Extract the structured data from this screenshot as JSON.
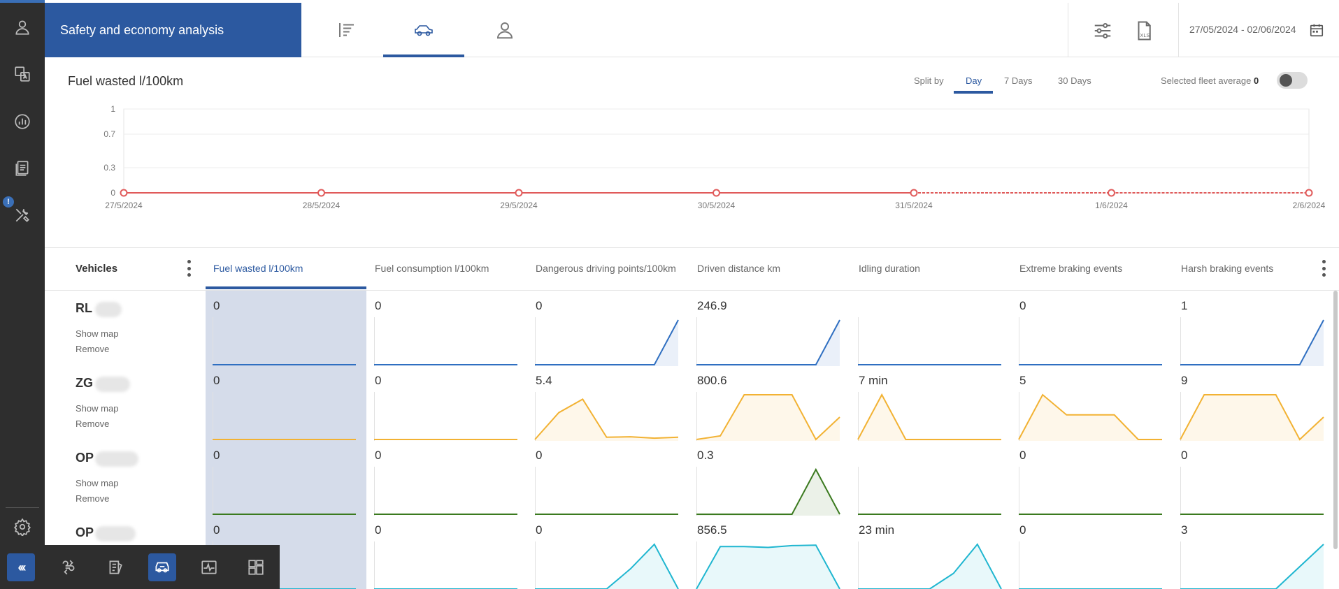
{
  "header": {
    "title": "Safety and economy analysis",
    "date_range": "27/05/2024 - 02/06/2024",
    "tabs": [
      {
        "name": "tab-summary",
        "icon": "align-left-icon"
      },
      {
        "name": "tab-vehicles",
        "icon": "car-icon",
        "active": true
      },
      {
        "name": "tab-drivers",
        "icon": "person-icon"
      }
    ],
    "export_label": "XLS"
  },
  "chart": {
    "title": "Fuel wasted l/100km",
    "split_label": "Split by",
    "split_options": [
      "Day",
      "7 Days",
      "30 Days"
    ],
    "split_selected": "Day",
    "fleet_avg_label": "Selected fleet average",
    "fleet_avg_value": "0",
    "fleet_avg_toggle_on": false
  },
  "chart_data": {
    "type": "line",
    "title": "Fuel wasted l/100km",
    "categories": [
      "27/5/2024",
      "28/5/2024",
      "29/5/2024",
      "30/5/2024",
      "31/5/2024",
      "1/6/2024",
      "2/6/2024"
    ],
    "yticks": [
      "0",
      "0.3",
      "0.7",
      "1"
    ],
    "ylim": [
      0,
      1
    ],
    "series": [
      {
        "values": [
          0,
          0,
          0,
          0,
          0,
          0,
          0
        ],
        "color": "#e05a5a"
      }
    ],
    "grid": true
  },
  "table": {
    "vehicles_header": "Vehicles",
    "columns": [
      "Fuel wasted l/100km",
      "Fuel consumption l/100km",
      "Dangerous driving points/100km",
      "Driven distance km",
      "Idling duration",
      "Extreme braking events",
      "Harsh braking events"
    ],
    "active_column": 0,
    "show_map_label": "Show map",
    "remove_label": "Remove",
    "rows": [
      {
        "prefix": "RL",
        "color": "#2f6fc1",
        "values": [
          "0",
          "0",
          "0",
          "246.9",
          "",
          "0",
          "1"
        ],
        "series": [
          [
            0,
            0,
            0,
            0,
            0,
            0,
            0
          ],
          [
            0,
            0,
            0,
            0,
            0,
            0,
            0
          ],
          [
            0,
            0,
            0,
            0,
            0,
            0,
            1
          ],
          [
            0,
            0,
            0,
            0,
            0,
            0,
            1
          ],
          [
            0,
            0,
            0,
            0,
            0,
            0,
            0
          ],
          [
            0,
            0,
            0,
            0,
            0,
            0,
            0
          ],
          [
            0,
            0,
            0,
            0,
            0,
            0,
            1
          ]
        ]
      },
      {
        "prefix": "ZG",
        "color": "#f2b233",
        "values": [
          "0",
          "0",
          "5.4",
          "800.6",
          "7 min",
          "5",
          "9"
        ],
        "series": [
          [
            0,
            0,
            0,
            0,
            0,
            0,
            0
          ],
          [
            0,
            0,
            0,
            0,
            0,
            0,
            0
          ],
          [
            0,
            0.6,
            0.9,
            0.05,
            0.06,
            0.03,
            0.05
          ],
          [
            0,
            0.08,
            1,
            1,
            1,
            0,
            0.5
          ],
          [
            0,
            1,
            0,
            0,
            0,
            0,
            0
          ],
          [
            0,
            1,
            0.55,
            0.55,
            0.55,
            0,
            0
          ],
          [
            0,
            1,
            1,
            1,
            1,
            0,
            0.5
          ]
        ]
      },
      {
        "prefix": "OP",
        "color": "#3b7a1f",
        "values": [
          "0",
          "0",
          "0",
          "0.3",
          "",
          "0",
          "0"
        ],
        "series": [
          [
            0,
            0,
            0,
            0,
            0,
            0,
            0
          ],
          [
            0,
            0,
            0,
            0,
            0,
            0,
            0
          ],
          [
            0,
            0,
            0,
            0,
            0,
            0,
            0
          ],
          [
            0,
            0,
            0,
            0,
            0,
            1,
            0
          ],
          [
            0,
            0,
            0,
            0,
            0,
            0,
            0
          ],
          [
            0,
            0,
            0,
            0,
            0,
            0,
            0
          ],
          [
            0,
            0,
            0,
            0,
            0,
            0,
            0
          ]
        ]
      },
      {
        "prefix": "OP",
        "color": "#1fb6d0",
        "values": [
          "0",
          "0",
          "0",
          "856.5",
          "23 min",
          "0",
          "3"
        ],
        "series": [
          [
            0,
            0,
            0,
            0,
            0,
            0,
            0
          ],
          [
            0,
            0,
            0,
            0,
            0,
            0,
            0
          ],
          [
            0,
            0,
            0,
            0,
            0.45,
            1,
            0
          ],
          [
            0,
            0.95,
            0.95,
            0.93,
            0.97,
            0.98,
            0
          ],
          [
            0,
            0,
            0,
            0,
            0.35,
            1,
            0
          ],
          [
            0,
            0,
            0,
            0,
            0,
            0,
            0
          ],
          [
            0,
            0,
            0,
            0,
            0,
            0.5,
            1
          ]
        ]
      }
    ]
  },
  "left_rail": [
    "user-icon",
    "translate-icon",
    "chart-icon",
    "documents-icon",
    "tools-icon",
    "settings-icon"
  ],
  "rail_badge": "!",
  "dock": [
    "collapse-icon",
    "route-icon",
    "list-icon",
    "car-icon",
    "pulse-icon",
    "dashboard-icon"
  ]
}
